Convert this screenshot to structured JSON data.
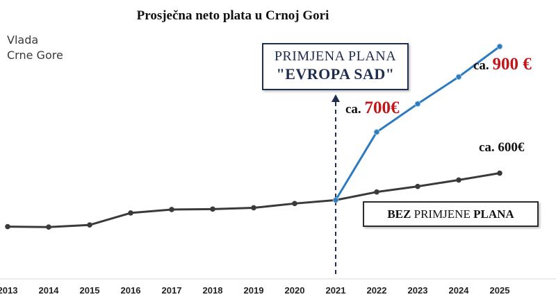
{
  "chart_data": {
    "type": "line",
    "title": "Prosječna neto plata u Crnoj Gori",
    "xlabel": "",
    "ylabel": "",
    "categories": [
      "2013",
      "2014",
      "2015",
      "2016",
      "2017",
      "2018",
      "2019",
      "2020",
      "2021",
      "2022",
      "2023",
      "2024",
      "2025"
    ],
    "ylim": [
      360,
      960
    ],
    "series": [
      {
        "name": "BEZ PRIMJENE PLANA",
        "color": "#3a3a3a",
        "x": [
          "2013",
          "2014",
          "2015",
          "2016",
          "2017",
          "2018",
          "2019",
          "2020",
          "2021",
          "2022",
          "2023",
          "2024",
          "2025"
        ],
        "values": [
          479,
          478,
          483,
          511,
          519,
          520,
          523,
          533,
          541,
          560,
          573,
          588,
          604
        ]
      },
      {
        "name": "PRIMJENA PLANA \"EVROPA SAD\"",
        "color": "#2d7bbf",
        "x": [
          "2021",
          "2022",
          "2023",
          "2024",
          "2025"
        ],
        "values": [
          541,
          700,
          766,
          829,
          900
        ]
      }
    ],
    "grid": false,
    "reference_line": {
      "x": "2021",
      "style": "dashed",
      "color": "#1f2d4f"
    }
  },
  "header": {
    "org_line1": "Vlada",
    "org_line2": "Crne Gore"
  },
  "annotations": {
    "plan_box_line1": "PRIMJENA PLANA",
    "plan_box_line2": "\"EVROPA SAD\"",
    "bez_bold1": "BEZ",
    "bez_mid": " PRIMJENE ",
    "bez_bold2": "PLANA",
    "label_700_prefix": "ca. ",
    "label_700_value": "700€",
    "label_900_prefix": "ca. ",
    "label_900_value": "900 €",
    "label_600": "ca. 600€"
  }
}
